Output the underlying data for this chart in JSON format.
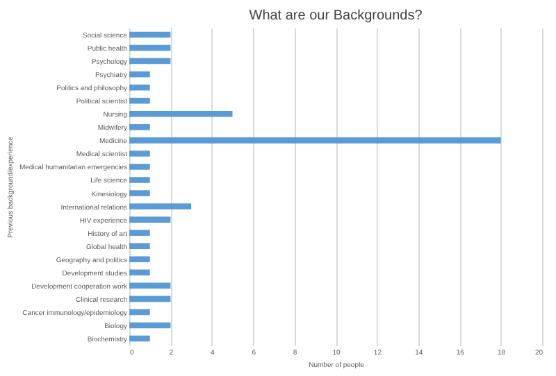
{
  "chart_data": {
    "type": "bar",
    "orientation": "horizontal",
    "title": "What are our Backgrounds?",
    "xlabel": "Number of people",
    "ylabel": "Previous background/experience",
    "categories": [
      "Social science",
      "Public health",
      "Psychology",
      "Psychiatry",
      "Politics and philosophy",
      "Political scientist",
      "Nursing",
      "Midwifery",
      "Medicine",
      "Medical scientist",
      "Medical humanitarian emergencies",
      "Life science",
      "Kinesiology",
      "International relations",
      "HIV experience",
      "History of art",
      "Global health",
      "Geography and politics",
      "Development studies",
      "Development cooperation work",
      "Clinical research",
      "Cancer immunology/epidemiology",
      "Biology",
      "Biochemistry"
    ],
    "values": [
      2,
      2,
      2,
      1,
      1,
      1,
      5,
      1,
      18,
      1,
      1,
      1,
      1,
      3,
      2,
      1,
      1,
      1,
      1,
      2,
      2,
      1,
      2,
      1
    ],
    "color": "#5b9bd5",
    "xlim": [
      0,
      20
    ],
    "xticks": [
      0,
      2,
      4,
      6,
      8,
      10,
      12,
      14,
      16,
      18,
      20
    ],
    "grid": "x"
  }
}
